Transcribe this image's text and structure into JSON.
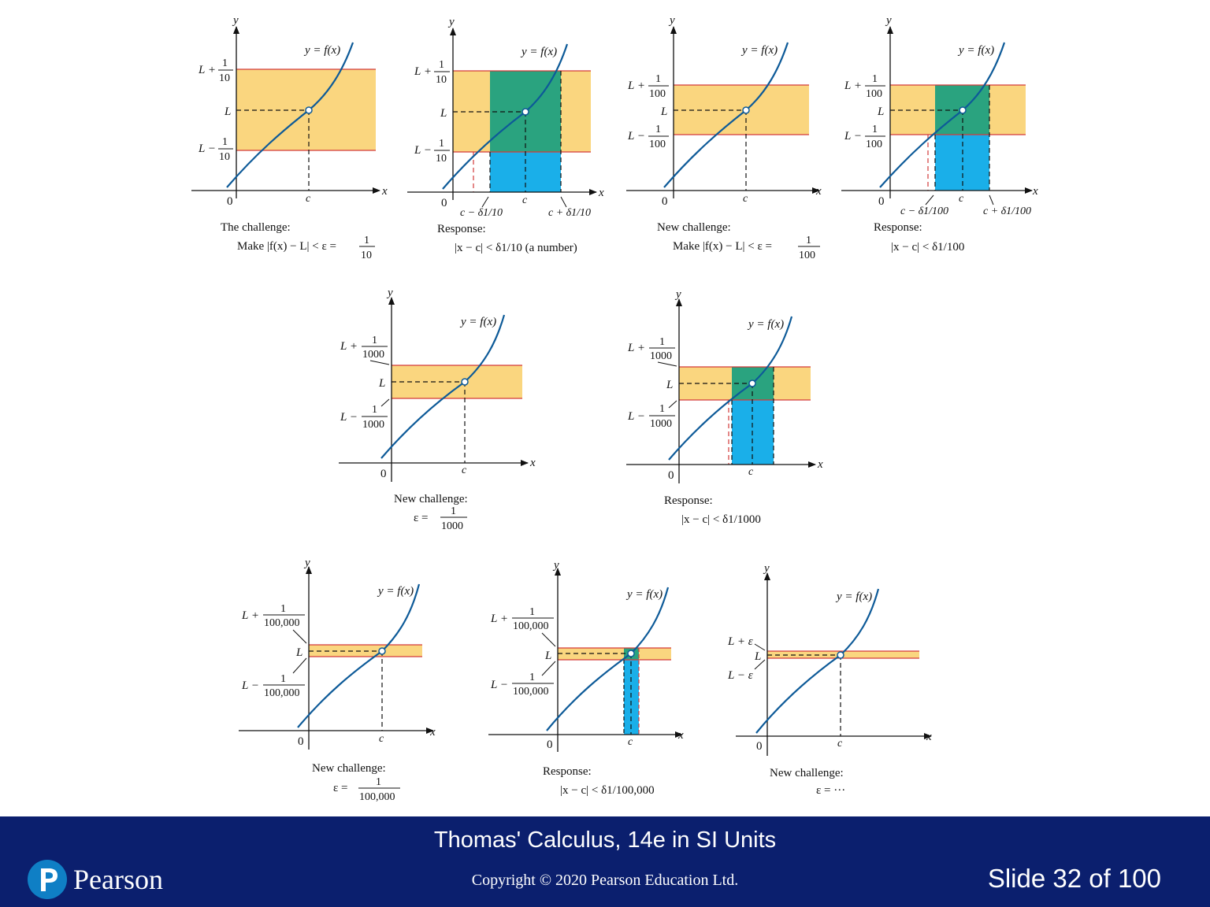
{
  "slide": {
    "footer_title": "Thomas' Calculus, 14e in SI Units",
    "copyright": "Copyright © 2020 Pearson Education Ltd.",
    "slide_number": "Slide 32 of 100",
    "brand": "Pearson",
    "colors": {
      "band": "#fad67f",
      "response": "#2aa37f",
      "lower": "#1aafe9",
      "curve": "#0d5a98",
      "footer": "#0b1f6e"
    }
  },
  "labels": {
    "y": "y",
    "x": "x",
    "zero": "0",
    "c": "c",
    "curve": "y = f(x)",
    "L": "L",
    "L_plus": "L +",
    "L_minus": "L −",
    "one": "1",
    "L_plus_eps": "L + ε",
    "L_minus_eps": "L − ε"
  },
  "panels": [
    {
      "denominator": "10",
      "caption_1": "The challenge:",
      "caption_2_prefix": "Make |f(x) − L| < ε =",
      "caption_2_frac_num": "1",
      "caption_2_frac_den": "10"
    },
    {
      "denominator": "10",
      "delta_left": "c − δ1/10",
      "delta_right": "c + δ1/10",
      "caption_1": "Response:",
      "caption_2": "|x − c| < δ1/10  (a number)"
    },
    {
      "denominator": "100",
      "caption_1": "New challenge:",
      "caption_2_prefix": "Make |f(x) − L| < ε =",
      "caption_2_frac_num": "1",
      "caption_2_frac_den": "100"
    },
    {
      "denominator": "100",
      "delta_left": "c − δ1/100",
      "delta_right": "c + δ1/100",
      "caption_1": "Response:",
      "caption_2": "|x − c| < δ1/100"
    },
    {
      "denominator": "1000",
      "caption_1": "New challenge:",
      "caption_2_prefix": "ε =",
      "caption_2_frac_num": "1",
      "caption_2_frac_den": "1000"
    },
    {
      "denominator": "1000",
      "caption_1": "Response:",
      "caption_2": "|x − c| < δ1/1000"
    },
    {
      "denominator": "100,000",
      "caption_1": "New challenge:",
      "caption_2_prefix": "ε =",
      "caption_2_frac_num": "1",
      "caption_2_frac_den": "100,000"
    },
    {
      "denominator": "100,000",
      "caption_1": "Response:",
      "caption_2": "|x − c| < δ1/100,000"
    },
    {
      "caption_1": "New challenge:",
      "caption_2": "ε = ···"
    }
  ]
}
